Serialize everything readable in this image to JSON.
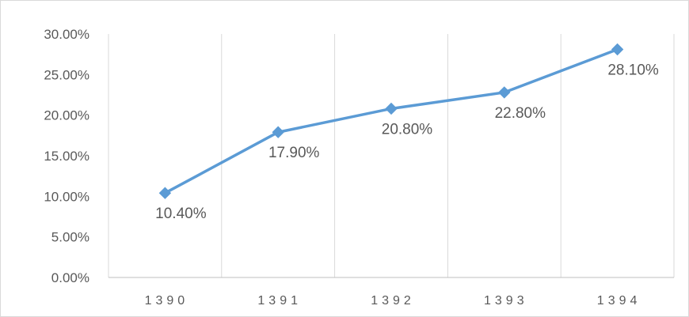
{
  "chart_data": {
    "type": "line",
    "categories": [
      "1390",
      "1391",
      "1392",
      "1393",
      "1394"
    ],
    "series": [
      {
        "values": [
          10.4,
          17.9,
          20.8,
          22.8,
          28.1
        ],
        "data_labels": [
          "10.40%",
          "17.90%",
          "20.80%",
          "22.80%",
          "28.10%"
        ],
        "color": "#5b9bd5",
        "marker": "diamond"
      }
    ],
    "y_ticks": [
      "0.00%",
      "5.00%",
      "10.00%",
      "15.00%",
      "20.00%",
      "25.00%",
      "30.00%"
    ],
    "ylim": [
      0,
      30
    ],
    "grid": "vertical",
    "legend": "none",
    "title": "",
    "xlabel": "",
    "ylabel": ""
  }
}
